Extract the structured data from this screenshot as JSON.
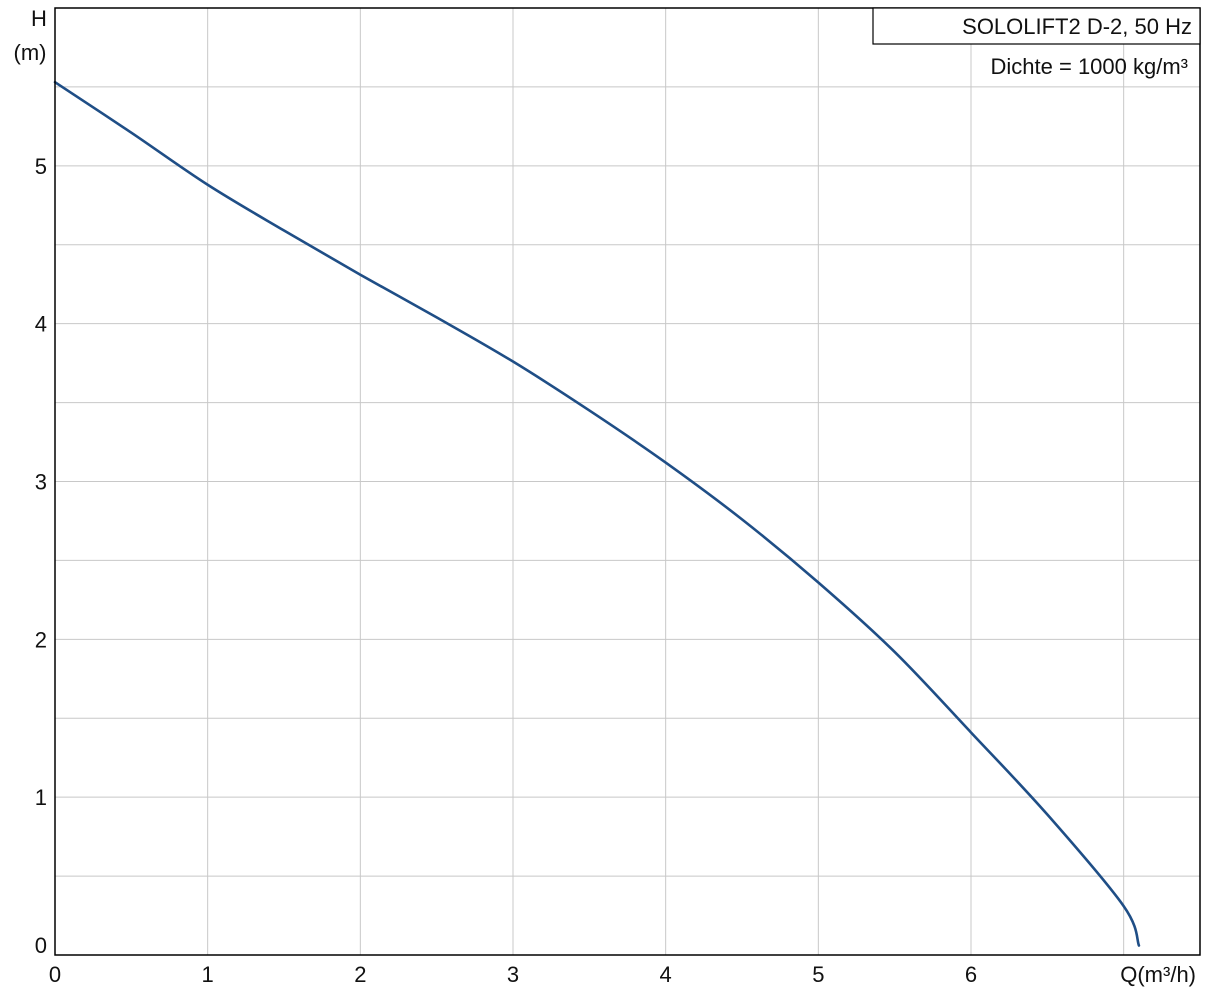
{
  "chart_data": {
    "type": "line",
    "title": "SOLOLIFT2 D-2, 50 Hz",
    "subtitle": "Dichte = 1000 kg/m³",
    "xlabel": "Q(m³/h)",
    "ylabel_top": "H",
    "ylabel_unit": "(m)",
    "xlim": [
      0,
      7.5
    ],
    "ylim": [
      0,
      6.0
    ],
    "x_ticks": [
      0,
      1,
      2,
      3,
      4,
      5,
      6
    ],
    "y_ticks": [
      0,
      1,
      2,
      3,
      4,
      5
    ],
    "x_tick_labels": [
      "0",
      "1",
      "2",
      "3",
      "4",
      "5",
      "6"
    ],
    "y_tick_labels": [
      "0",
      "1",
      "2",
      "3",
      "4",
      "5"
    ],
    "grid": true,
    "legend_position": "top-right",
    "colors": {
      "curve": "#1f4e86",
      "grid": "#c8c8c8",
      "frame": "#000000"
    },
    "series": [
      {
        "x": [
          0,
          0.5,
          1,
          1.5,
          2,
          2.5,
          3,
          3.5,
          4,
          4.5,
          5,
          5.5,
          6,
          6.5,
          7,
          7.1
        ],
        "y": [
          5.53,
          5.21,
          4.88,
          4.59,
          4.31,
          4.04,
          3.76,
          3.45,
          3.12,
          2.76,
          2.36,
          1.92,
          1.41,
          0.89,
          0.31,
          0.06
        ]
      }
    ]
  }
}
